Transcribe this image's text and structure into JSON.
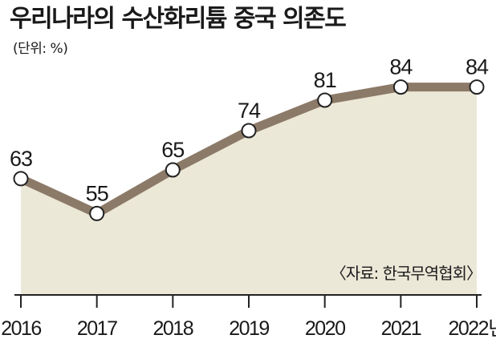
{
  "chart_data": {
    "type": "line",
    "title": "우리나라의 수산화리튬 중국 의존도",
    "unit": "(단위: %)",
    "source": "〈자료: 한국무역협회〉",
    "x": [
      "2016",
      "2017",
      "2018",
      "2019",
      "2020",
      "2021",
      "2022"
    ],
    "values": [
      63,
      55,
      65,
      74,
      81,
      84,
      84
    ],
    "x_suffix": "년",
    "colors": {
      "line": "#8c7a68",
      "area": "#ece8d8",
      "marker_fill": "#ffffff",
      "marker_stroke": "#222222",
      "axis": "#222222"
    }
  }
}
